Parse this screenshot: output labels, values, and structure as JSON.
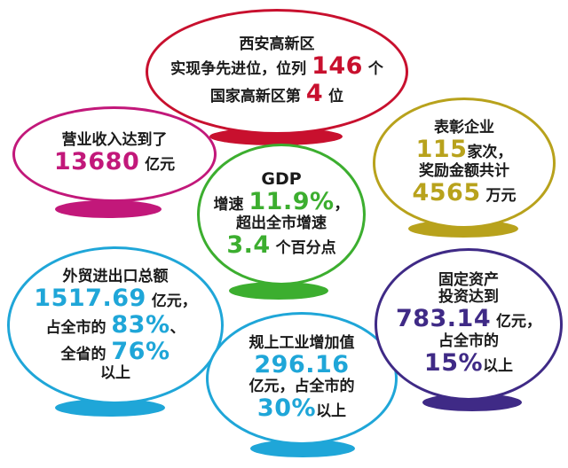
{
  "colors": {
    "red": "#c8102e",
    "magenta": "#c2187a",
    "green": "#3cae2f",
    "gold": "#b8a21c",
    "cyan": "#1fa6d8",
    "purple": "#3f2a86"
  },
  "xian": {
    "line1": "西安高新区",
    "line2_pre": "实现争先进位，位列 ",
    "rank_count": "146",
    "line2_post": " 个",
    "line3_pre": "国家高新区第 ",
    "rank": "4",
    "line3_post": " 位"
  },
  "revenue": {
    "title": "营业收入达到了",
    "value": "13680",
    "unit": " 亿元"
  },
  "gdp": {
    "title": "GDP",
    "growth_pre": "增速 ",
    "growth": "11.9%",
    "growth_post": "，",
    "exceed": "超出全市增速",
    "diff": "3.4",
    "diff_unit": " 个百分点"
  },
  "award": {
    "title": "表彰企业",
    "count": "115",
    "count_unit": "家次，",
    "line3": "奖励金额共计",
    "amount": "4565",
    "amount_unit": " 万元"
  },
  "trade": {
    "title": "外贸进出口总额",
    "value": "1517.69",
    "value_unit": " 亿元，",
    "city_pre": "占全市的 ",
    "city_pct": "83%",
    "city_post": "、",
    "prov_pre": "全省的 ",
    "prov_pct": "76%",
    "above": "以上"
  },
  "industry": {
    "title": "规上工业增加值",
    "value": "296.16",
    "line3": "亿元，占全市的",
    "pct": "30%",
    "above": "以上"
  },
  "invest": {
    "title1": "固定资产",
    "title2": "投资达到",
    "value": "783.14",
    "value_unit": " 亿元，",
    "line4": "占全市的",
    "pct": "15%",
    "above": "以上"
  }
}
